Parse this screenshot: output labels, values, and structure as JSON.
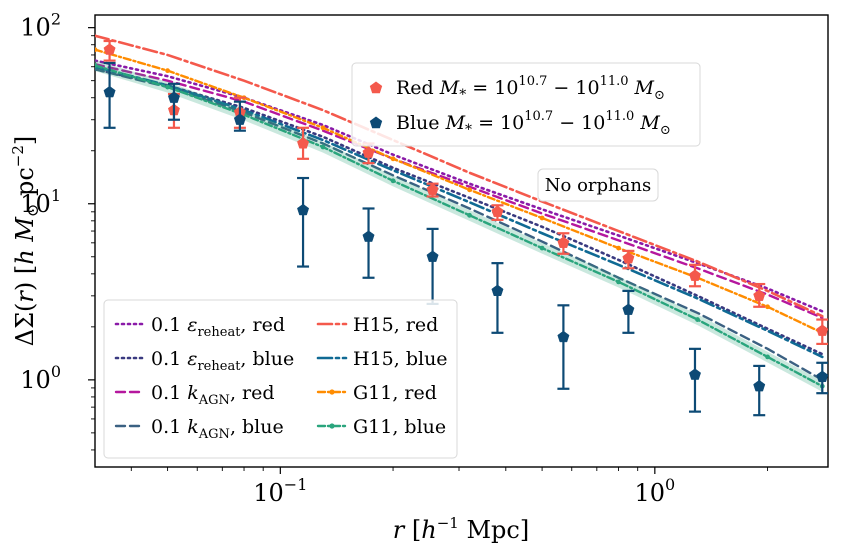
{
  "chart_data": {
    "type": "line",
    "xscale": "log",
    "yscale": "log",
    "xlim": [
      0.032,
      2.9
    ],
    "ylim": [
      0.32,
      118
    ],
    "xlabel": "r [h^-1 Mpc]",
    "ylabel": "ΔΣ(r) [h M⊙ pc^-2]",
    "x_ticks": [
      {
        "value": 0.1,
        "base": "10",
        "exp": "−1"
      },
      {
        "value": 1,
        "base": "10",
        "exp": "0"
      }
    ],
    "y_ticks": [
      {
        "value": 1,
        "base": "10",
        "exp": "0"
      },
      {
        "value": 10,
        "base": "10",
        "exp": "1"
      },
      {
        "value": 100,
        "base": "10",
        "exp": "2"
      }
    ],
    "annotation": "No orphans",
    "colors": {
      "red_obs": "#f4594c",
      "blue_obs": "#0d4a75",
      "purple": "#8a1aa8",
      "navy": "#3a3a80",
      "magenta": "#b5179e",
      "steel": "#3b6182",
      "h15_red": "#f4594c",
      "h15_blue": "#106a94",
      "g11_red": "#ff8c00",
      "g11_blue": "#2aa57d"
    },
    "observations": [
      {
        "name": "Red M* = 10^10.7 - 10^11.0 M⊙",
        "sample": "Red",
        "legend_math": "M* = 10^10.7 − 10^11.0 M⊙",
        "color_key": "red_obs",
        "x": [
          0.035,
          0.052,
          0.078,
          0.115,
          0.172,
          0.255,
          0.38,
          0.57,
          0.85,
          1.28,
          1.9,
          2.8
        ],
        "y": [
          75,
          34,
          33,
          22,
          19.5,
          12,
          9,
          6,
          4.9,
          3.9,
          3.0,
          1.9
        ],
        "err_low": [
          65,
          27,
          27,
          18,
          17,
          11,
          8.1,
          5.2,
          4.3,
          3.4,
          2.6,
          1.6
        ],
        "err_high": [
          84,
          42,
          40,
          27,
          22,
          13,
          9.8,
          6.8,
          5.4,
          4.5,
          3.5,
          2.2
        ]
      },
      {
        "name": "Blue M* = 10^10.7 - 10^11.0 M⊙",
        "sample": "Blue",
        "legend_math": "M* = 10^10.7 − 10^11.0 M⊙",
        "color_key": "blue_obs",
        "x": [
          0.035,
          0.052,
          0.078,
          0.115,
          0.172,
          0.255,
          0.38,
          0.57,
          0.85,
          1.28,
          1.9,
          2.8
        ],
        "y": [
          43,
          40,
          30,
          9.2,
          6.5,
          5.0,
          3.2,
          1.75,
          2.5,
          1.07,
          0.92,
          1.04
        ],
        "err_low": [
          27,
          30,
          26,
          4.4,
          3.8,
          2.7,
          1.85,
          0.89,
          1.85,
          0.66,
          0.63,
          0.84
        ],
        "err_high": [
          63,
          48,
          38,
          14,
          9.4,
          7.2,
          4.6,
          2.65,
          3.2,
          1.5,
          1.2,
          1.25
        ]
      }
    ],
    "series": [
      {
        "name": "0.1 ε_reheat, red",
        "legend_pre": "0.1",
        "legend_sym": "ε",
        "legend_sub": "reheat",
        "legend_post": ", red",
        "color_key": "purple",
        "dash": "2,4",
        "width": 2.6,
        "x": [
          0.032,
          0.05,
          0.08,
          0.13,
          0.2,
          0.32,
          0.5,
          0.8,
          1.3,
          2.0,
          2.8
        ],
        "y": [
          65,
          53,
          40,
          28,
          19,
          13,
          9.3,
          6.6,
          4.6,
          3.3,
          2.45
        ]
      },
      {
        "name": "0.1 ε_reheat, blue",
        "legend_pre": "0.1",
        "legend_sym": "ε",
        "legend_sub": "reheat",
        "legend_post": ", blue",
        "color_key": "navy",
        "dash": "2,4",
        "width": 2.6,
        "x": [
          0.032,
          0.05,
          0.08,
          0.13,
          0.2,
          0.32,
          0.5,
          0.8,
          1.3,
          2.0,
          2.8
        ],
        "y": [
          58,
          47,
          35,
          24,
          16,
          10.8,
          7.4,
          4.8,
          3.0,
          1.95,
          1.4
        ]
      },
      {
        "name": "0.1 k_AGN, red",
        "legend_pre": "0.1",
        "legend_sym": "k",
        "legend_sub": "AGN",
        "legend_post": ", red",
        "color_key": "magenta",
        "dash": "9,5",
        "width": 2.4,
        "x": [
          0.032,
          0.05,
          0.08,
          0.13,
          0.2,
          0.32,
          0.5,
          0.8,
          1.3,
          2.0,
          2.8
        ],
        "y": [
          62,
          50,
          38,
          26,
          18,
          12.5,
          8.8,
          6.2,
          4.3,
          3.05,
          2.25
        ]
      },
      {
        "name": "0.1 k_AGN, blue",
        "legend_pre": "0.1",
        "legend_sym": "k",
        "legend_sub": "AGN",
        "legend_post": ", blue",
        "color_key": "steel",
        "dash": "9,5",
        "width": 2.4,
        "x": [
          0.032,
          0.05,
          0.08,
          0.13,
          0.2,
          0.32,
          0.5,
          0.8,
          1.3,
          2.0,
          2.8
        ],
        "y": [
          58,
          46,
          33,
          22,
          14.5,
          9.4,
          6.1,
          3.8,
          2.4,
          1.5,
          1.0
        ]
      },
      {
        "name": "H15, red",
        "legend_pre": "H15, red",
        "color_key": "h15_red",
        "dash": "14,4,3,4",
        "width": 2.6,
        "x": [
          0.032,
          0.05,
          0.08,
          0.13,
          0.2,
          0.32,
          0.5,
          0.8,
          1.3,
          2.0,
          2.8
        ],
        "y": [
          90,
          70,
          50,
          34,
          23,
          15,
          10.3,
          7.0,
          4.7,
          3.2,
          2.3
        ]
      },
      {
        "name": "H15, blue",
        "legend_pre": "H15, blue",
        "color_key": "h15_blue",
        "dash": "14,4,3,4",
        "width": 2.6,
        "x": [
          0.032,
          0.05,
          0.08,
          0.13,
          0.2,
          0.32,
          0.5,
          0.8,
          1.3,
          2.0,
          2.8
        ],
        "y": [
          60,
          47,
          34,
          23,
          15.5,
          10.2,
          6.8,
          4.5,
          2.9,
          1.9,
          1.35
        ]
      },
      {
        "name": "G11, red",
        "legend_pre": "G11, red",
        "color_key": "g11_red",
        "dash": "7,3,2,3",
        "width": 2.4,
        "dots": true,
        "x": [
          0.032,
          0.05,
          0.08,
          0.13,
          0.2,
          0.32,
          0.5,
          0.8,
          1.3,
          2.0,
          2.8
        ],
        "y": [
          75,
          57,
          40,
          27,
          18,
          12,
          8.3,
          5.6,
          3.8,
          2.6,
          1.85
        ]
      },
      {
        "name": "G11, blue",
        "legend_pre": "G11, blue",
        "color_key": "g11_blue",
        "dash": "7,3,2,3",
        "width": 2.4,
        "dots": true,
        "band": 0.07,
        "x": [
          0.032,
          0.05,
          0.08,
          0.13,
          0.2,
          0.32,
          0.5,
          0.8,
          1.3,
          2.0,
          2.8
        ],
        "y": [
          61,
          46,
          32,
          21,
          13.5,
          8.6,
          5.6,
          3.6,
          2.2,
          1.35,
          0.92
        ]
      }
    ]
  }
}
